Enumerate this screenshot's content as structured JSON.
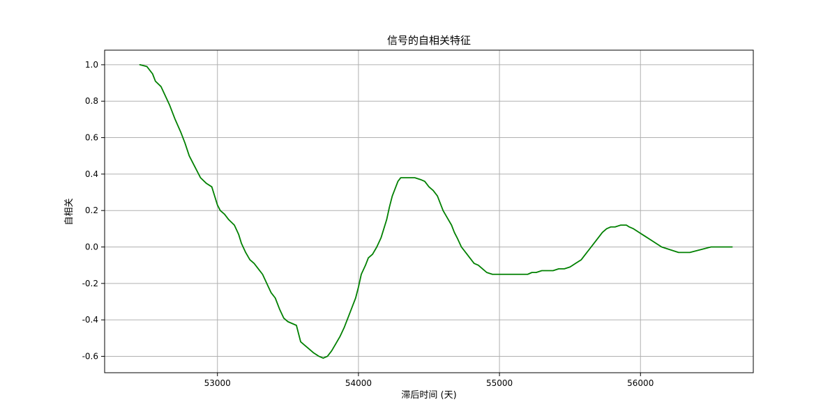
{
  "chart_data": {
    "type": "line",
    "title": "信号的自相关特征",
    "xlabel": "滞后时间 (天)",
    "ylabel": "自相关",
    "xlim": [
      52200,
      56800
    ],
    "ylim": [
      -0.69,
      1.08
    ],
    "x_ticks": [
      53000,
      54000,
      55000,
      56000
    ],
    "y_ticks": [
      -0.6,
      -0.4,
      -0.2,
      0.0,
      0.2,
      0.4,
      0.6,
      0.8,
      1.0
    ],
    "x_tick_labels": [
      "53000",
      "54000",
      "55000",
      "56000"
    ],
    "y_tick_labels": [
      "-0.6",
      "-0.4",
      "-0.2",
      "0.0",
      "0.2",
      "0.4",
      "0.6",
      "0.8",
      "1.0"
    ],
    "grid": true,
    "series": [
      {
        "color": "#008000",
        "x": [
          52450,
          52500,
          52540,
          52560,
          52600,
          52630,
          52660,
          52700,
          52740,
          52770,
          52800,
          52840,
          52880,
          52920,
          52960,
          53000,
          53020,
          53050,
          53080,
          53120,
          53150,
          53170,
          53200,
          53230,
          53260,
          53290,
          53320,
          53350,
          53380,
          53410,
          53440,
          53470,
          53500,
          53530,
          53560,
          53590,
          53620,
          53650,
          53680,
          53720,
          53750,
          53780,
          53810,
          53840,
          53870,
          53900,
          53930,
          53960,
          53980,
          54000,
          54020,
          54050,
          54070,
          54100,
          54130,
          54160,
          54200,
          54220,
          54240,
          54260,
          54280,
          54300,
          54320,
          54340,
          54360,
          54400,
          54440,
          54470,
          54500,
          54530,
          54560,
          54600,
          54630,
          54660,
          54680,
          54700,
          54730,
          54760,
          54790,
          54820,
          54850,
          54880,
          54910,
          54950,
          54990,
          55030,
          55060,
          55100,
          55150,
          55200,
          55230,
          55260,
          55300,
          55340,
          55380,
          55420,
          55460,
          55500,
          55540,
          55580,
          55610,
          55640,
          55670,
          55700,
          55730,
          55760,
          55790,
          55820,
          55860,
          55900,
          55920,
          55950,
          55990,
          56030,
          56070,
          56110,
          56150,
          56190,
          56230,
          56270,
          56310,
          56350,
          56400,
          56450,
          56500,
          56550,
          56600,
          56650
        ],
        "y": [
          1.0,
          0.99,
          0.95,
          0.91,
          0.88,
          0.83,
          0.78,
          0.7,
          0.63,
          0.57,
          0.5,
          0.44,
          0.38,
          0.35,
          0.33,
          0.23,
          0.2,
          0.18,
          0.15,
          0.12,
          0.07,
          0.02,
          -0.03,
          -0.07,
          -0.09,
          -0.12,
          -0.15,
          -0.2,
          -0.25,
          -0.28,
          -0.34,
          -0.39,
          -0.41,
          -0.42,
          -0.43,
          -0.52,
          -0.54,
          -0.56,
          -0.58,
          -0.6,
          -0.61,
          -0.6,
          -0.57,
          -0.53,
          -0.49,
          -0.44,
          -0.38,
          -0.32,
          -0.28,
          -0.22,
          -0.15,
          -0.1,
          -0.06,
          -0.04,
          0.0,
          0.05,
          0.15,
          0.22,
          0.28,
          0.32,
          0.36,
          0.38,
          0.38,
          0.38,
          0.38,
          0.38,
          0.37,
          0.36,
          0.33,
          0.31,
          0.28,
          0.2,
          0.16,
          0.12,
          0.08,
          0.05,
          0.0,
          -0.03,
          -0.06,
          -0.09,
          -0.1,
          -0.12,
          -0.14,
          -0.15,
          -0.15,
          -0.15,
          -0.15,
          -0.15,
          -0.15,
          -0.15,
          -0.14,
          -0.14,
          -0.13,
          -0.13,
          -0.13,
          -0.12,
          -0.12,
          -0.11,
          -0.09,
          -0.07,
          -0.04,
          -0.01,
          0.02,
          0.05,
          0.08,
          0.1,
          0.11,
          0.11,
          0.12,
          0.12,
          0.11,
          0.1,
          0.08,
          0.06,
          0.04,
          0.02,
          0.0,
          -0.01,
          -0.02,
          -0.03,
          -0.03,
          -0.03,
          -0.02,
          -0.01,
          0.0,
          0.0,
          0.0,
          0.0
        ]
      }
    ]
  }
}
